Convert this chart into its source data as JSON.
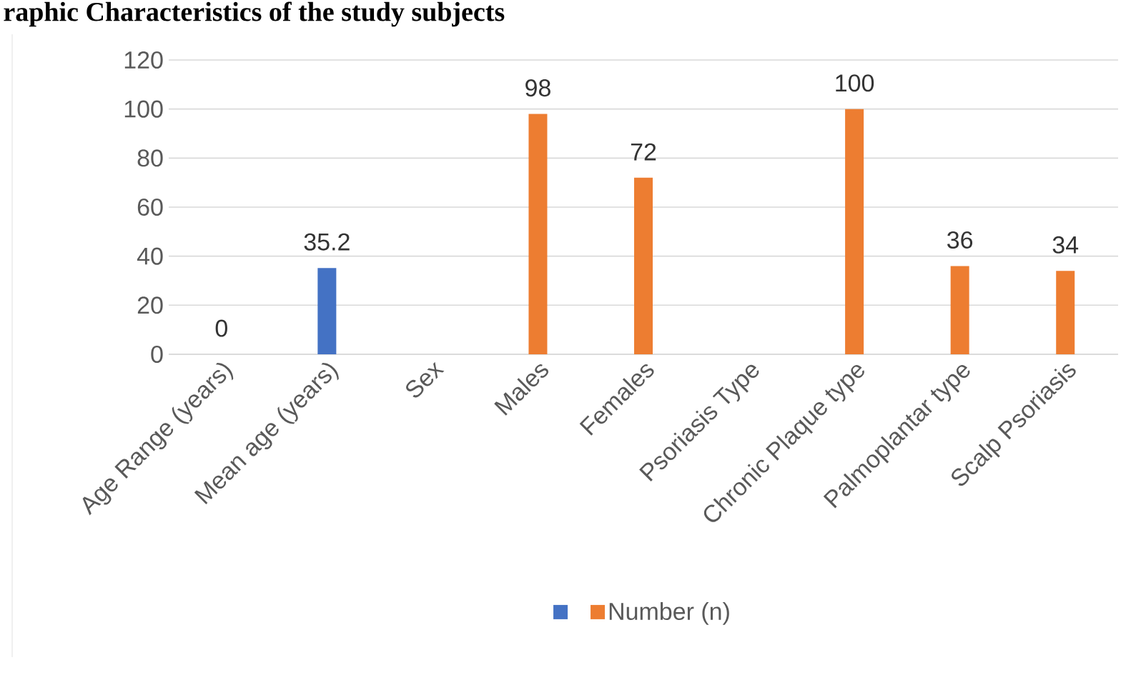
{
  "chart_data": {
    "type": "bar",
    "title": "raphic Characteristics of the study subjects",
    "categories": [
      "Age Range (years)",
      "Mean age (years)",
      "Sex",
      "Males",
      "Females",
      "Psoriasis Type",
      "Chronic Plaque type",
      "Palmoplantar type",
      "Scalp Psoriasis"
    ],
    "series": [
      {
        "color": "#4472c4",
        "values": [
          0,
          35.2,
          null,
          null,
          null,
          null,
          null,
          null,
          null
        ]
      },
      {
        "name": "Number (n)",
        "color": "#ed7d31",
        "values": [
          null,
          null,
          null,
          98,
          72,
          null,
          100,
          36,
          34
        ]
      }
    ],
    "ylim": [
      0,
      120
    ],
    "yticks": [
      0,
      20,
      40,
      60,
      80,
      100,
      120
    ],
    "grid": "y",
    "legend": "bottom",
    "data_labels": true
  }
}
